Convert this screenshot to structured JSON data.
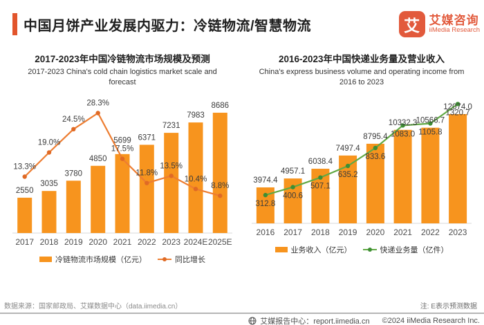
{
  "header": {
    "title": "中国月饼产业发展内驱力：冷链物流/智慧物流"
  },
  "logo": {
    "glyph": "艾",
    "name_cn": "艾媒咨询",
    "name_en": "iiMedia Research",
    "color": "#E25A3C"
  },
  "colors": {
    "accent": "#E2552C",
    "bar_orange": "#F7941E",
    "line_orange": "#ED7D31",
    "line_green": "#61A944",
    "marker_green": "#3E8E34",
    "marker_orange": "#E06A25"
  },
  "chart_data": [
    {
      "type": "bar+line",
      "title": "2017-2023年中国冷链物流市场规模及预测",
      "subtitle": "2017-2023 China's cold chain logistics market scale and forecast",
      "categories": [
        "2017",
        "2018",
        "2019",
        "2020",
        "2021",
        "2022",
        "2023",
        "2024E",
        "2025E"
      ],
      "grid": false,
      "legend_position": "bottom",
      "ylim_bar": [
        0,
        9000
      ],
      "ylim_line_pct": [
        0,
        31
      ],
      "series": [
        {
          "name": "冷链物流市场规模（亿元）",
          "type": "bar",
          "color": "#F7941E",
          "values": [
            2550,
            3035,
            3780,
            4850,
            5699,
            6371,
            7231,
            7983,
            8686
          ],
          "labels": [
            "2550",
            "3035",
            "3780",
            "4850",
            "5699",
            "6371",
            "7231",
            "7983",
            "8686"
          ]
        },
        {
          "name": "同比增长",
          "type": "line",
          "color": "#ED7D31",
          "marker_color": "#E06A25",
          "values": [
            13.3,
            19.0,
            24.5,
            28.3,
            17.5,
            11.8,
            13.5,
            10.4,
            8.8
          ],
          "labels": [
            "13.3%",
            "19.0%",
            "24.5%",
            "28.3%",
            "17.5%",
            "11.8%",
            "13.5%",
            "10.4%",
            "8.8%"
          ]
        }
      ]
    },
    {
      "type": "bar+line",
      "title": "2016-2023年中国快递业务量及营业收入",
      "subtitle": "China's express business volume and operating income from 2016 to 2023",
      "categories": [
        "2016",
        "2017",
        "2018",
        "2019",
        "2020",
        "2021",
        "2022",
        "2023"
      ],
      "grid": false,
      "legend_position": "bottom",
      "ylim_bar": [
        0,
        12500
      ],
      "ylim_line": [
        0,
        1400
      ],
      "series": [
        {
          "name": "业务收入（亿元）",
          "type": "bar",
          "color": "#F7941E",
          "values": [
            3974.4,
            4957.1,
            6038.4,
            7497.4,
            8795.4,
            10332.3,
            10566.7,
            12074.0
          ],
          "labels": [
            "3974.4",
            "4957.1",
            "6038.4",
            "7497.4",
            "8795.4",
            "10332.3",
            "10566.7",
            "12074.0"
          ]
        },
        {
          "name": "快递业务量（亿件）",
          "type": "line",
          "color": "#61A944",
          "marker_color": "#3E8E34",
          "values": [
            312.8,
            400.6,
            507.1,
            635.2,
            833.6,
            1083.0,
            1105.8,
            1320.7
          ],
          "labels": [
            "312.8",
            "400.6",
            "507.1",
            "635.2",
            "833.6",
            "1083.0",
            "1105.8",
            "1320.7"
          ]
        }
      ]
    }
  ],
  "notes": {
    "source": "数据来源：国家邮政局、艾媒数据中心（data.iimedia.cn）",
    "forecast": "注: E表示预测数据"
  },
  "footer": {
    "report_center": "艾媒报告中心：report.iimedia.cn",
    "copyright": "©2024  iiMedia Research Inc."
  }
}
